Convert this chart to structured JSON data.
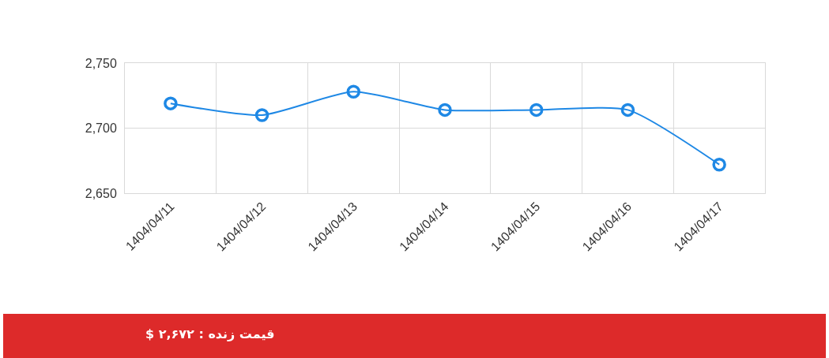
{
  "chart_data": {
    "type": "line",
    "categories": [
      "1404/04/11",
      "1404/04/12",
      "1404/04/13",
      "1404/04/14",
      "1404/04/15",
      "1404/04/16",
      "1404/04/17"
    ],
    "series": [
      {
        "color": "#1e88e5",
        "values": [
          2719,
          2710,
          2728,
          2714,
          2714,
          2714,
          2672
        ]
      }
    ],
    "ylim": [
      2650,
      2750
    ],
    "yticks": [
      {
        "value": 2650,
        "label": "2,650"
      },
      {
        "value": 2700,
        "label": "2,700"
      },
      {
        "value": 2750,
        "label": "2,750"
      }
    ],
    "grid": true,
    "marker": "circle",
    "line_style": "solid",
    "annotations": [
      "قیمت زنده : ۲,۶۷۲ $"
    ]
  }
}
